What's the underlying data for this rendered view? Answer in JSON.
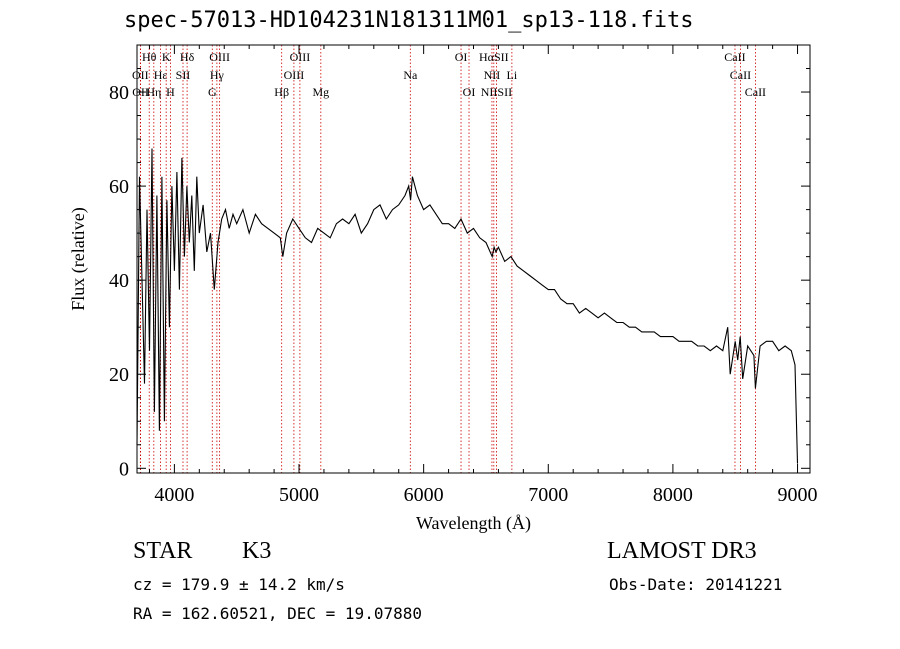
{
  "chart_data": {
    "type": "line",
    "title": "spec-57013-HD104231N181311M01_sp13-118.fits",
    "xlabel": "Wavelength (Å)",
    "ylabel": "Flux (relative)",
    "xlim": [
      3700,
      9100
    ],
    "ylim": [
      -1,
      90
    ],
    "xticks": [
      4000,
      5000,
      6000,
      7000,
      8000,
      9000
    ],
    "yticks": [
      0,
      20,
      40,
      60,
      80
    ],
    "line_color": "#cc0000",
    "series": [
      {
        "name": "flux",
        "x": [
          3700,
          3720,
          3740,
          3760,
          3780,
          3800,
          3820,
          3840,
          3860,
          3880,
          3900,
          3920,
          3940,
          3960,
          3980,
          4000,
          4020,
          4040,
          4060,
          4080,
          4100,
          4120,
          4140,
          4160,
          4180,
          4200,
          4230,
          4260,
          4290,
          4320,
          4350,
          4380,
          4410,
          4440,
          4470,
          4500,
          4550,
          4600,
          4650,
          4700,
          4750,
          4800,
          4850,
          4870,
          4900,
          4950,
          5000,
          5050,
          5100,
          5150,
          5200,
          5250,
          5300,
          5350,
          5400,
          5450,
          5500,
          5550,
          5600,
          5650,
          5700,
          5750,
          5800,
          5850,
          5880,
          5895,
          5910,
          5950,
          6000,
          6050,
          6100,
          6150,
          6200,
          6250,
          6300,
          6350,
          6400,
          6450,
          6500,
          6550,
          6565,
          6580,
          6600,
          6650,
          6700,
          6750,
          6800,
          6850,
          6900,
          6950,
          7000,
          7050,
          7100,
          7150,
          7200,
          7250,
          7300,
          7350,
          7400,
          7450,
          7500,
          7550,
          7600,
          7650,
          7700,
          7750,
          7800,
          7850,
          7900,
          7950,
          8000,
          8050,
          8100,
          8150,
          8200,
          8250,
          8300,
          8350,
          8400,
          8440,
          8460,
          8500,
          8520,
          8540,
          8560,
          8600,
          8650,
          8662,
          8700,
          8750,
          8800,
          8850,
          8900,
          8950,
          8980,
          9000
        ],
        "y": [
          5,
          62,
          40,
          18,
          55,
          25,
          68,
          12,
          58,
          8,
          62,
          10,
          57,
          30,
          60,
          42,
          63,
          38,
          66,
          45,
          60,
          48,
          58,
          42,
          62,
          50,
          56,
          46,
          50,
          38,
          48,
          53,
          55,
          51,
          54,
          52,
          55,
          50,
          54,
          52,
          51,
          50,
          49,
          45,
          50,
          53,
          51,
          49,
          48,
          51,
          50,
          49,
          52,
          53,
          52,
          54,
          50,
          52,
          55,
          56,
          53,
          55,
          56,
          58,
          60,
          57,
          62,
          58,
          55,
          56,
          54,
          52,
          52,
          51,
          53,
          50,
          51,
          49,
          48,
          45,
          47,
          46,
          47,
          44,
          45,
          43,
          42,
          41,
          40,
          39,
          38,
          38,
          36,
          35,
          35,
          33,
          34,
          33,
          32,
          33,
          32,
          31,
          31,
          30,
          30,
          29,
          29,
          29,
          28,
          28,
          28,
          27,
          27,
          27,
          26,
          26,
          25,
          26,
          25,
          30,
          20,
          27,
          23,
          28,
          19,
          26,
          24,
          17,
          26,
          27,
          27,
          25,
          26,
          25,
          22,
          1
        ]
      }
    ],
    "lines": [
      {
        "label": "Hθ",
        "x": 3798,
        "row": 0
      },
      {
        "label": "K",
        "x": 3934,
        "row": 0
      },
      {
        "label": "Hδ",
        "x": 4102,
        "row": 0
      },
      {
        "label": "OIII",
        "x": 4363,
        "row": 0
      },
      {
        "label": "OIII",
        "x": 5007,
        "row": 0
      },
      {
        "label": "OI",
        "x": 6300,
        "row": 0
      },
      {
        "label": "HαSII",
        "x": 6563,
        "row": 0
      },
      {
        "label": "CaII",
        "x": 8498,
        "row": 0
      },
      {
        "label": "OII",
        "x": 3727,
        "row": 1
      },
      {
        "label": "Hε",
        "x": 3889,
        "row": 1
      },
      {
        "label": "SII",
        "x": 4069,
        "row": 1
      },
      {
        "label": "Hγ",
        "x": 4341,
        "row": 1
      },
      {
        "label": "OIII",
        "x": 4959,
        "row": 1
      },
      {
        "label": "Na",
        "x": 5893,
        "row": 1
      },
      {
        "label": "NII",
        "x": 6548,
        "row": 1
      },
      {
        "label": "Li",
        "x": 6708,
        "row": 1
      },
      {
        "label": "CaII",
        "x": 8542,
        "row": 1
      },
      {
        "label": "OII",
        "x": 3729,
        "row": 2
      },
      {
        "label": "Hη",
        "x": 3835,
        "row": 2
      },
      {
        "label": "H",
        "x": 3968,
        "row": 2
      },
      {
        "label": "G",
        "x": 4304,
        "row": 2
      },
      {
        "label": "Hβ",
        "x": 4861,
        "row": 2
      },
      {
        "label": "Mg",
        "x": 5175,
        "row": 2
      },
      {
        "label": "OI",
        "x": 6364,
        "row": 2
      },
      {
        "label": "NIISII",
        "x": 6584,
        "row": 2
      },
      {
        "label": "CaII",
        "x": 8662,
        "row": 2
      }
    ]
  },
  "info": {
    "class": "STAR",
    "subclass": "K3",
    "survey": "LAMOST DR3",
    "cz": "cz = 179.9 ± 14.2 km/s",
    "obs_date": "Obs-Date: 20141221",
    "coords": "RA = 162.60521, DEC =  19.07880"
  }
}
